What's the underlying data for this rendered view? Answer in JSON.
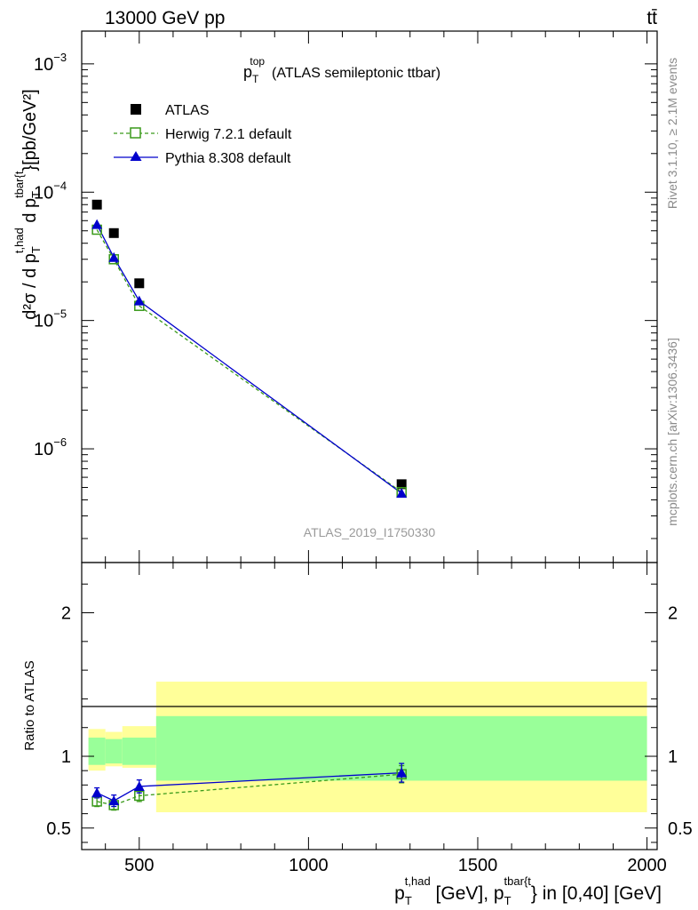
{
  "header": {
    "left": "13000 GeV pp",
    "right": "tt̄"
  },
  "plot_title": {
    "main": "p",
    "sub": "T",
    "sup": "top",
    "rest": "(ATLAS semileptonic ttbar)"
  },
  "watermark": "ATLAS_2019_I1750330",
  "side_text": {
    "rivet": "Rivet 3.1.10, ≥ 2.1M events",
    "mcplots": "mcplots.cern.ch [arXiv:1306.3436]"
  },
  "ylabel_main": {
    "lead": "d²σ  /  d p",
    "sub1": "T",
    "sup1": "t,had",
    "mid": " d p",
    "sub2": "T",
    "sup2": "tbar{t",
    "tail": "}[pb/GeV²]"
  },
  "ylabel_ratio": "Ratio to ATLAS",
  "xlabel": {
    "p1": "p",
    "sub1": "T",
    "sup1": "t,had",
    "mid": " [GeV], p",
    "sub2": "T",
    "sup2": "tbar{t",
    "tail": "} in [0,40] [GeV]"
  },
  "legend": [
    {
      "name": "ATLAS",
      "color": "#000000",
      "marker": "filled-square"
    },
    {
      "name": "Herwig 7.2.1 default",
      "color": "#3a9a1a",
      "marker": "open-square"
    },
    {
      "name": "Pythia 8.308 default",
      "color": "#0000cc",
      "marker": "filled-triangle"
    }
  ],
  "chart_data": [
    {
      "type": "scatter",
      "scale": "log",
      "ylim": [
        1.3e-07,
        0.0018
      ],
      "xlim": [
        330,
        2030
      ],
      "y_ticks": [
        {
          "value": 0.001,
          "mantissa": "10",
          "exp": "−3"
        },
        {
          "value": 0.0001,
          "mantissa": "10",
          "exp": "−4"
        },
        {
          "value": 1e-05,
          "mantissa": "10",
          "exp": "−5"
        },
        {
          "value": 1e-06,
          "mantissa": "10",
          "exp": "−6"
        }
      ],
      "series": [
        {
          "name": "ATLAS",
          "x": [
            375,
            425,
            500,
            1275
          ],
          "values": [
            8e-05,
            4.8e-05,
            1.95e-05,
            5.3e-07
          ]
        },
        {
          "name": "Herwig 7.2.1 default",
          "x": [
            375,
            425,
            500,
            1275
          ],
          "values": [
            5.1e-05,
            3e-05,
            1.3e-05,
            4.6e-07
          ]
        },
        {
          "name": "Pythia 8.308 default",
          "x": [
            375,
            425,
            500,
            1275
          ],
          "values": [
            5.6e-05,
            3.1e-05,
            1.42e-05,
            4.5e-07
          ]
        }
      ]
    },
    {
      "type": "scatter",
      "xlim": [
        330,
        2030
      ],
      "ylim": [
        0.35,
        2.35
      ],
      "x_ticks": [
        "500",
        "1000",
        "1500",
        "2000"
      ],
      "y_ticks": [
        "0.5",
        "1",
        "2"
      ],
      "bands": [
        {
          "x": [
            350,
            400,
            450,
            550,
            2000
          ],
          "yellow_lo": [
            0.9,
            0.93,
            0.92,
            0.61
          ],
          "yellow_hi": [
            1.19,
            1.17,
            1.21,
            1.52
          ],
          "green_lo": [
            0.94,
            0.95,
            0.94,
            0.83
          ],
          "green_hi": [
            1.13,
            1.12,
            1.13,
            1.28
          ]
        }
      ],
      "series": [
        {
          "name": "Herwig 7.2.1 default",
          "x": [
            375,
            425,
            500,
            1275
          ],
          "values": [
            0.685,
            0.66,
            0.725,
            0.875
          ],
          "err": [
            0.035,
            0.035,
            0.04,
            0.06
          ]
        },
        {
          "name": "Pythia 8.308 default",
          "x": [
            375,
            425,
            500,
            1275
          ],
          "values": [
            0.745,
            0.69,
            0.79,
            0.885
          ],
          "err": [
            0.035,
            0.04,
            0.045,
            0.065
          ]
        }
      ]
    }
  ]
}
